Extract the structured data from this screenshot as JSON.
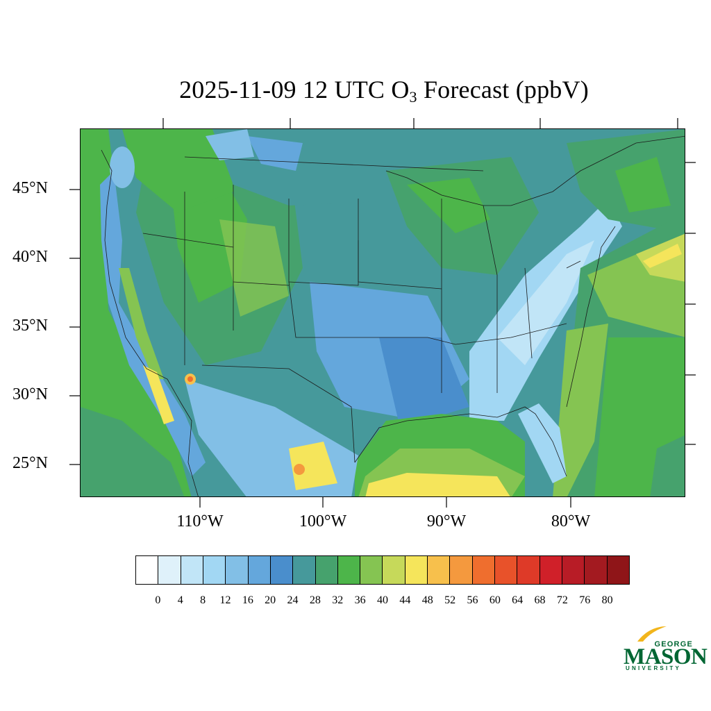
{
  "title": {
    "main": "2025-11-09 12 UTC O",
    "sub": "3",
    "rest": " Forecast (ppbV)"
  },
  "latitude_labels": [
    "45°N",
    "40°N",
    "35°N",
    "30°N",
    "25°N"
  ],
  "longitude_labels": [
    "110°W",
    "100°W",
    "90°W",
    "80°W"
  ],
  "colorbar": {
    "labels": [
      "0",
      "4",
      "8",
      "12",
      "16",
      "20",
      "24",
      "28",
      "32",
      "36",
      "40",
      "44",
      "48",
      "52",
      "56",
      "60",
      "64",
      "68",
      "72",
      "76",
      "80"
    ],
    "colors": [
      "#ffffff",
      "#dff1fa",
      "#c1e5f7",
      "#a2d7f3",
      "#82bfe6",
      "#64a7dc",
      "#4a8ecc",
      "#46999b",
      "#46a26d",
      "#4db54a",
      "#85c452",
      "#c6d95a",
      "#f5e55b",
      "#f7c04c",
      "#f4993e",
      "#ef6e2e",
      "#e8522a",
      "#de3a28",
      "#d02029",
      "#b81c26",
      "#a31a20",
      "#8f1518"
    ]
  },
  "logo": {
    "line1": "GEORGE",
    "line2": "MASON",
    "line3": "UNIVERSITY"
  }
}
